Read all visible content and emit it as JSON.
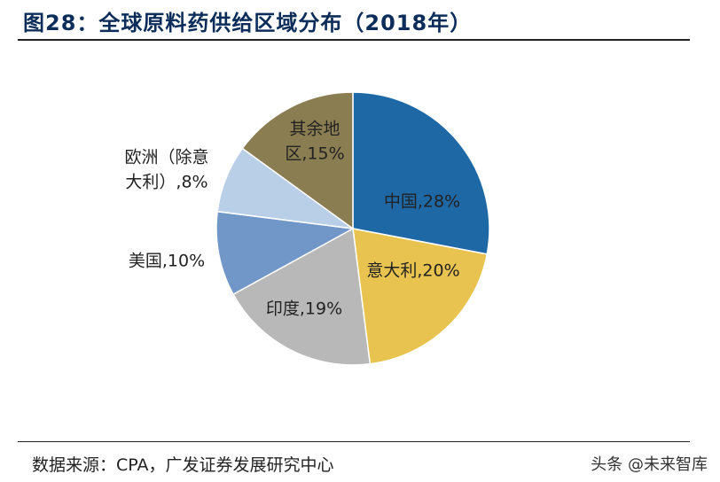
{
  "header": {
    "title": "图28：全球原料药供给区域分布（2018年）"
  },
  "chart_data": {
    "type": "pie",
    "title": "图28：全球原料药供给区域分布（2018年）",
    "slices": [
      {
        "name": "中国",
        "value": 28,
        "color": "#1f68a6",
        "label_lines": [
          "中国,28%"
        ]
      },
      {
        "name": "意大利",
        "value": 20,
        "color": "#e8c350",
        "label_lines": [
          "意大利,20%"
        ]
      },
      {
        "name": "印度",
        "value": 19,
        "color": "#b8b8b8",
        "label_lines": [
          "印度,19%"
        ]
      },
      {
        "name": "美国",
        "value": 10,
        "color": "#7196c8",
        "label_lines": [
          "美国,10%"
        ]
      },
      {
        "name": "欧洲（除意大利）",
        "value": 8,
        "color": "#b9cfe8",
        "label_lines": [
          "欧洲（除意",
          "大利）,8%"
        ]
      },
      {
        "name": "其余地区",
        "value": 15,
        "color": "#8b7d52",
        "label_lines": [
          "其余地",
          "区,15%"
        ]
      }
    ],
    "start": "12 o'clock",
    "direction": "clockwise"
  },
  "footer": {
    "source": "数据来源：CPA，广发证券发展研究中心",
    "watermark": "头条 @未来智库"
  }
}
